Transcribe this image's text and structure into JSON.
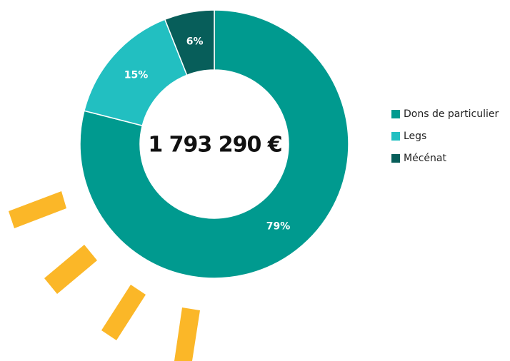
{
  "chart_data": {
    "type": "donut",
    "center_label": "1 793 290 €",
    "categories": [
      "Dons de particulier",
      "Legs",
      "Mécénat"
    ],
    "values": [
      79,
      15,
      6
    ],
    "value_labels": [
      "79%",
      "15%",
      "6%"
    ],
    "colors": [
      "#009a8f",
      "#22bfc1",
      "#075e5a"
    ],
    "legend": "right"
  }
}
